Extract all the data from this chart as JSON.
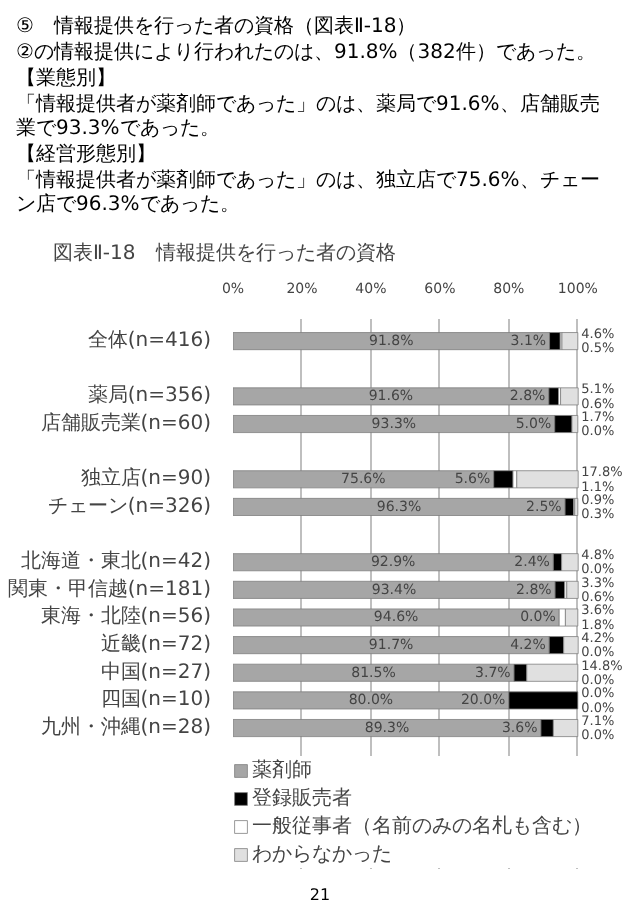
{
  "chart_data": {
    "type": "bar",
    "orientation": "horizontal",
    "stacked": true,
    "title": "図表Ⅱ-18　情報提供を行った者の資格",
    "annotations": [
      "⑤　情報提供を行った者の資格（図表Ⅱ-18）",
      "②の情報提供により行われたのは、91.8%（382件）であった。",
      "【業態別】",
      "「情報提供者が薬剤師であった」のは、薬局で91.6%、店舗販売業で93.3%であった。",
      "【経営形態別】",
      "「情報提供者が薬剤師であった」のは、独立店で75.6%、チェーン店で96.3%であった。",
      "21"
    ],
    "categories": [
      "全体(n=416)",
      null,
      "薬局(n=356)",
      "店舗販売業(n=60)",
      null,
      "独立店(n=90)",
      "チェーン(n=326)",
      null,
      "北海道・東北(n=42)",
      "関東・甲信越(n=181)",
      "東海・北陸(n=56)",
      "近畿(n=72)",
      "中国(n=27)",
      "四国(n=10)",
      "九州・沖縄(n=28)"
    ],
    "series": [
      {
        "name": "薬剤師",
        "color": "#a6a6a6",
        "values": [
          91.8,
          null,
          91.6,
          93.3,
          null,
          75.6,
          96.3,
          null,
          92.9,
          93.4,
          94.6,
          91.7,
          81.5,
          80.0,
          89.3
        ],
        "value_labels": [
          "91.8%",
          null,
          "91.6%",
          "93.3%",
          null,
          "75.6%",
          "96.3%",
          null,
          "92.9%",
          "93.4%",
          "94.6%",
          "91.7%",
          "81.5%",
          "80.0%",
          "89.3%"
        ]
      },
      {
        "name": "登録販売者",
        "color": "#000000",
        "values": [
          3.1,
          null,
          2.8,
          5.0,
          null,
          5.6,
          2.5,
          null,
          2.4,
          2.8,
          0.0,
          4.2,
          3.7,
          20.0,
          3.6
        ],
        "value_labels": [
          "3.1%",
          null,
          "2.8%",
          "5.0%",
          null,
          "5.6%",
          "2.5%",
          null,
          "2.4%",
          "2.8%",
          "0.0%",
          "4.2%",
          "3.7%",
          "20.0%",
          "3.6%"
        ]
      },
      {
        "name": "一般従事者（名前のみの名札も含む）",
        "color": "#ffffff",
        "values": [
          0.5,
          null,
          0.6,
          0.0,
          null,
          1.1,
          0.3,
          null,
          0.0,
          0.6,
          1.8,
          0.0,
          0.0,
          0.0,
          0.0
        ],
        "value_labels": [
          "0.5%",
          null,
          "0.6%",
          "0.0%",
          null,
          "1.1%",
          "0.3%",
          null,
          "0.0%",
          "0.6%",
          "1.8%",
          "0.0%",
          "0.0%",
          "0.0%",
          "0.0%"
        ]
      },
      {
        "name": "わからなかった",
        "color": "#e0e0e0",
        "values": [
          4.6,
          null,
          5.1,
          1.7,
          null,
          17.8,
          0.9,
          null,
          4.8,
          3.3,
          3.6,
          4.2,
          14.8,
          0.0,
          7.1
        ],
        "value_labels": [
          "4.6%",
          null,
          "5.1%",
          "1.7%",
          null,
          "17.8%",
          "0.9%",
          null,
          "4.8%",
          "3.3%",
          "3.6%",
          "4.2%",
          "14.8%",
          "0.0%",
          "7.1%"
        ]
      }
    ],
    "xlim": [
      0,
      100
    ],
    "xticks": [
      {
        "value": 0,
        "label": "0%"
      },
      {
        "value": 20,
        "label": "20%"
      },
      {
        "value": 40,
        "label": "40%"
      },
      {
        "value": 60,
        "label": "60%"
      },
      {
        "value": 80,
        "label": "80%"
      },
      {
        "value": 100,
        "label": "100%"
      }
    ],
    "grid": "x",
    "legend": "bottom"
  }
}
